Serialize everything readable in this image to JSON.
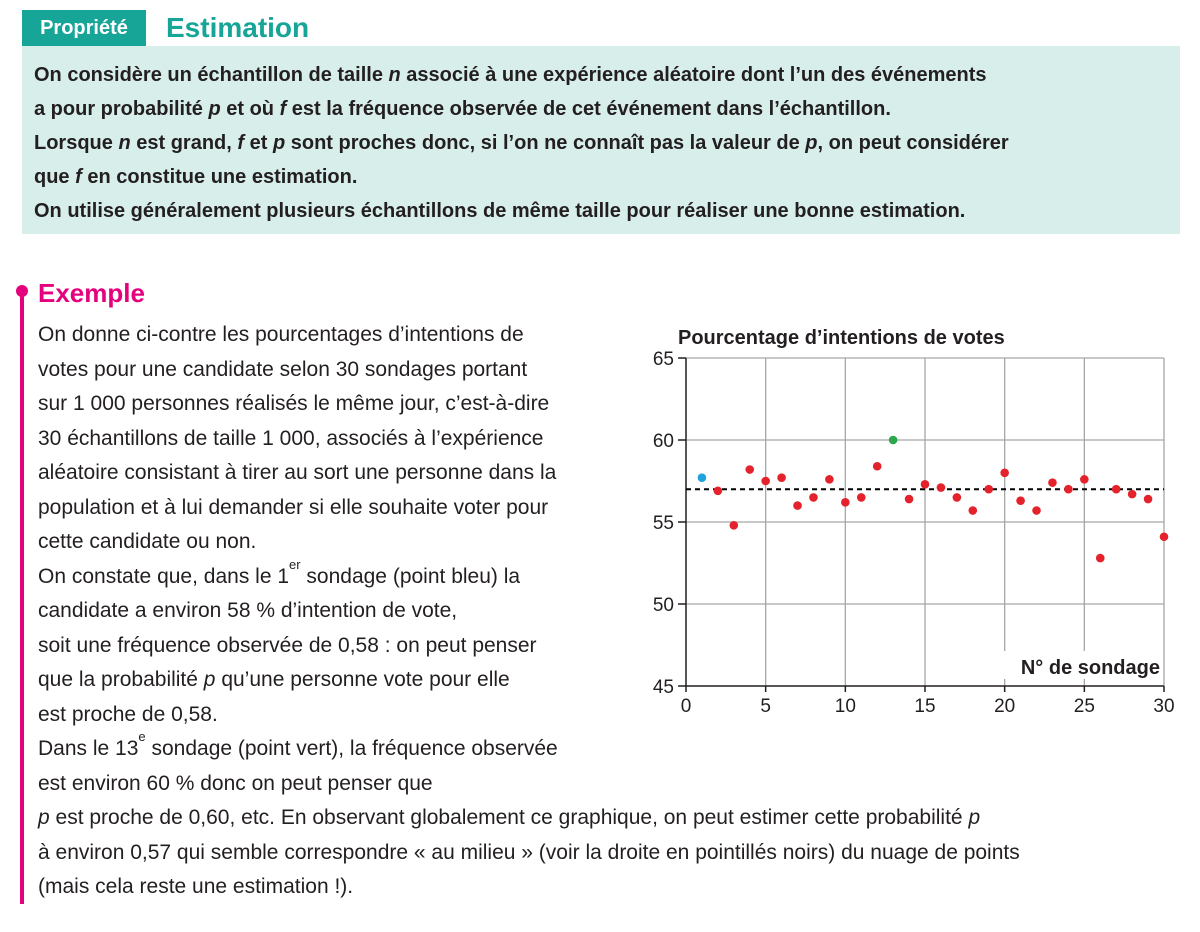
{
  "property": {
    "tag": "Propriété",
    "title": "Estimation",
    "lines": [
      [
        {
          "t": "On considère un échantillon de taille "
        },
        {
          "t": "n",
          "i": true
        },
        {
          "t": " associé à une expérience aléatoire dont l’un des événements"
        }
      ],
      [
        {
          "t": "a pour probabilité "
        },
        {
          "t": "p",
          "i": true
        },
        {
          "t": " et où "
        },
        {
          "t": "f",
          "i": true
        },
        {
          "t": " est la fréquence observée de cet événement dans l’échantillon."
        }
      ],
      [
        {
          "t": "Lorsque "
        },
        {
          "t": "n",
          "i": true
        },
        {
          "t": " est grand, "
        },
        {
          "t": "f",
          "i": true
        },
        {
          "t": " et "
        },
        {
          "t": "p",
          "i": true
        },
        {
          "t": " sont proches donc, si l’on ne connaît pas la valeur de "
        },
        {
          "t": "p",
          "i": true
        },
        {
          "t": ", on peut considérer"
        }
      ],
      [
        {
          "t": "que "
        },
        {
          "t": "f",
          "i": true
        },
        {
          "t": " en constitue une "
        },
        {
          "t": "estimation.",
          "b": true
        }
      ],
      [
        {
          "t": "On utilise généralement plusieurs échantillons de même taille pour réaliser une bonne estimation."
        }
      ]
    ]
  },
  "example": {
    "title": "Exemple",
    "lines": [
      [
        {
          "t": "On donne ci-contre les pourcentages d’intentions de"
        }
      ],
      [
        {
          "t": "votes pour une candidate selon 30 sondages portant"
        }
      ],
      [
        {
          "t": "sur 1 000 personnes réalisés le même jour, c’est-à-dire"
        }
      ],
      [
        {
          "t": "30 échantillons de taille 1 000, associés à l’expérience"
        }
      ],
      [
        {
          "t": "aléatoire consistant à tirer au sort une personne dans la"
        }
      ],
      [
        {
          "t": "population et à lui demander si elle souhaite voter pour"
        }
      ],
      [
        {
          "t": "cette candidate ou non."
        }
      ],
      [
        {
          "t": "On constate que, dans le 1"
        },
        {
          "t": "er",
          "s": true
        },
        {
          "t": " sondage (point bleu) la"
        }
      ],
      [
        {
          "t": "candidate a environ 58 % d’intention de vote,"
        }
      ],
      [
        {
          "t": "soit une fréquence observée de 0,58 : on peut penser"
        }
      ],
      [
        {
          "t": "que la probabilité "
        },
        {
          "t": "p",
          "i": true
        },
        {
          "t": " qu’une personne vote pour elle"
        }
      ],
      [
        {
          "t": "est proche de 0,58."
        }
      ],
      [
        {
          "t": "Dans le 13"
        },
        {
          "t": "e",
          "s": true
        },
        {
          "t": " sondage (point vert), la fréquence observée"
        }
      ],
      [
        {
          "t": "est environ 60 % donc on peut penser que"
        }
      ]
    ],
    "bottom_lines": [
      [
        {
          "t": "p",
          "i": true
        },
        {
          "t": " est proche de 0,60, etc. En observant globalement ce graphique, on peut estimer cette probabilité "
        },
        {
          "t": "p",
          "i": true
        }
      ],
      [
        {
          "t": "à environ 0,57 qui semble correspondre « au milieu » (voir la droite en pointillés noirs) du nuage de points"
        }
      ],
      [
        {
          "t": "(mais cela reste une estimation !)."
        }
      ]
    ]
  },
  "chart_data": {
    "type": "scatter",
    "title": "Pourcentage d’intentions de votes",
    "xlabel": "N° de sondage",
    "ylabel": "",
    "xlim": [
      0,
      30
    ],
    "ylim": [
      45,
      65
    ],
    "xticks": [
      0,
      5,
      10,
      15,
      20,
      25,
      30
    ],
    "yticks": [
      45,
      50,
      55,
      60,
      65
    ],
    "grid": true,
    "reference_line": 57,
    "x": [
      1,
      2,
      3,
      4,
      5,
      6,
      7,
      8,
      9,
      10,
      11,
      12,
      13,
      14,
      15,
      16,
      17,
      18,
      19,
      20,
      21,
      22,
      23,
      24,
      25,
      26,
      27,
      28,
      29,
      30
    ],
    "y": [
      57.7,
      56.9,
      54.8,
      58.2,
      57.5,
      57.7,
      56.0,
      56.5,
      57.6,
      56.2,
      56.5,
      58.4,
      60.0,
      56.4,
      57.3,
      57.1,
      56.5,
      55.7,
      57.0,
      58.0,
      56.3,
      55.7,
      57.4,
      57.0,
      57.6,
      52.8,
      57.0,
      56.7,
      56.4,
      54.1
    ],
    "colors": {
      "point": "#e3222b",
      "first": "#1fa3dc",
      "thirteenth": "#2aa84a",
      "grid": "#a6a6a6",
      "axis": "#231f20"
    }
  }
}
